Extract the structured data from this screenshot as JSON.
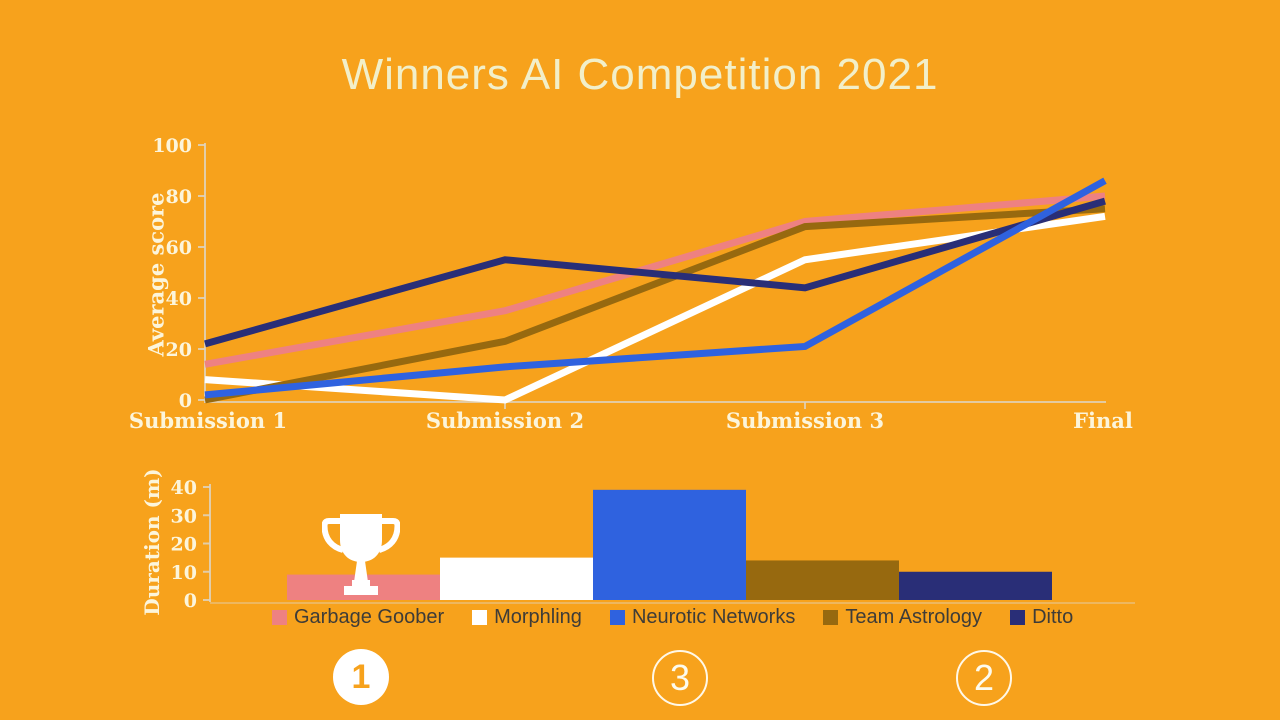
{
  "title": "Winners AI Competition 2021",
  "colors": {
    "background": "#F7A21C",
    "title_text": "#F2EFC9",
    "axis_text": "#FCF5DB",
    "axis_line": "#DFD5C2",
    "legend_text": "#3E3C38"
  },
  "legend": {
    "items": [
      {
        "label": "Garbage Goober",
        "color": "#EE8181"
      },
      {
        "label": "Morphling",
        "color": "#FFFFFF"
      },
      {
        "label": "Neurotic Networks",
        "color": "#2F62DF"
      },
      {
        "label": "Team Astrology",
        "color": "#97690F"
      },
      {
        "label": "Ditto",
        "color": "#292E77"
      }
    ]
  },
  "rankings": [
    {
      "rank": "1",
      "team": "Garbage Goober",
      "style": "filled"
    },
    {
      "rank": "3",
      "team": "Neurotic Networks",
      "style": "outline"
    },
    {
      "rank": "2",
      "team": "Ditto",
      "style": "outline"
    }
  ],
  "trophy": {
    "meaning": "winner trophy above Garbage Goober bar"
  },
  "chart_data": [
    {
      "type": "line",
      "title": "Average score per submission",
      "ylabel": "Average score",
      "ylim": [
        0,
        100
      ],
      "yticks": [
        0,
        20,
        40,
        60,
        80,
        100
      ],
      "x_categories": [
        "Submission 1",
        "Submission 2",
        "Submission 3",
        "Final"
      ],
      "grid": false,
      "series": [
        {
          "name": "Garbage Goober",
          "color": "#EE8181",
          "values": [
            14,
            35,
            70,
            80
          ]
        },
        {
          "name": "Morphling",
          "color": "#FFFFFF",
          "values": [
            8,
            0,
            55,
            72
          ]
        },
        {
          "name": "Team Astrology",
          "color": "#97690F",
          "values": [
            0,
            23,
            68,
            75
          ]
        },
        {
          "name": "Ditto",
          "color": "#292E77",
          "values": [
            22,
            55,
            44,
            78
          ]
        },
        {
          "name": "Neurotic Networks",
          "color": "#2F62DF",
          "values": [
            2,
            13,
            21,
            86
          ]
        }
      ]
    },
    {
      "type": "bar",
      "title": "Duration per team",
      "ylabel": "Duration (m)",
      "ylim": [
        0,
        40
      ],
      "yticks": [
        0,
        10,
        20,
        30,
        40
      ],
      "categories": [
        "Garbage Goober",
        "Morphling",
        "Neurotic Networks",
        "Team Astrology",
        "Ditto"
      ],
      "values": [
        9,
        15,
        39,
        14,
        10
      ],
      "colors": [
        "#EE8181",
        "#FFFFFF",
        "#2F62DF",
        "#97690F",
        "#292E77"
      ]
    }
  ]
}
